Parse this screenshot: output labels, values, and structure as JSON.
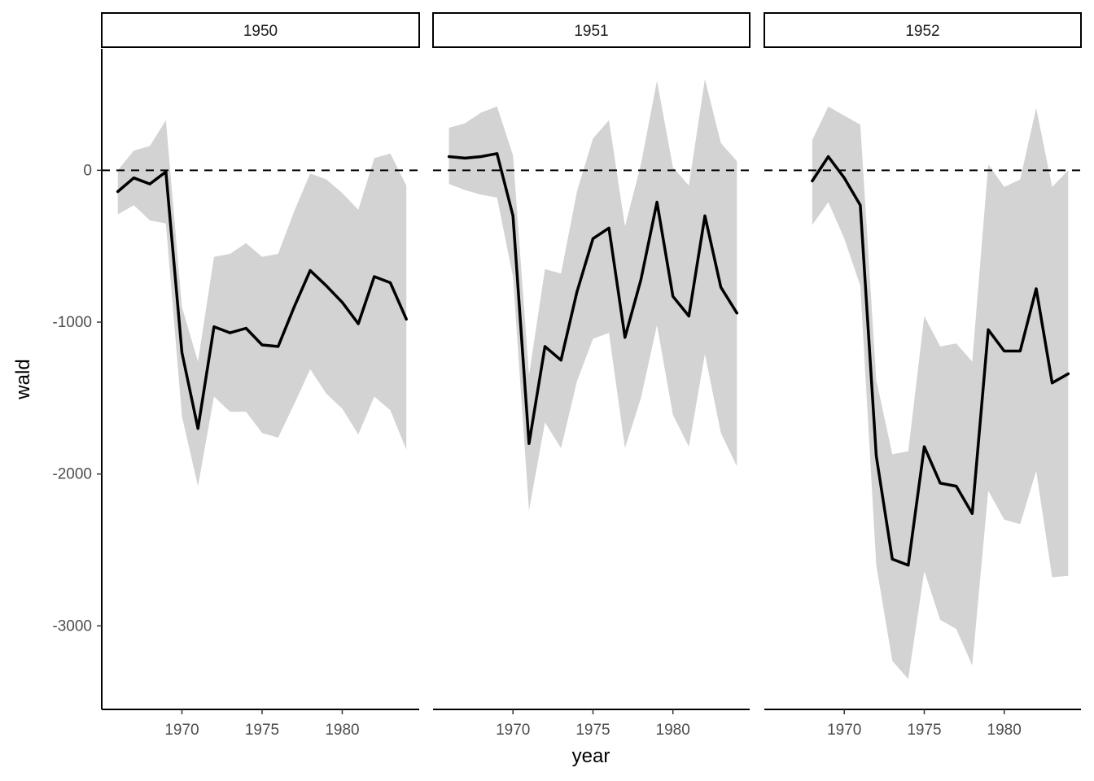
{
  "chart_data": {
    "type": "line",
    "ylabel": "wald",
    "xlabel": "year",
    "ylim": [
      -3550,
      800
    ],
    "yticks": [
      0,
      -1000,
      -2000,
      -3000
    ],
    "ytick_labels": [
      "0",
      "-1000",
      "-2000",
      "-3000"
    ],
    "xticks": [
      1970,
      1975,
      1980
    ],
    "xtick_labels": [
      "1970",
      "1975",
      "1980"
    ],
    "reference_line": {
      "y": 0,
      "style": "dashed",
      "color": "#000000"
    },
    "line_color": "#000000",
    "band_color": "#d3d3d3",
    "grid": false,
    "legend": "none",
    "facets": [
      {
        "label": "1950",
        "xlim": [
          1965.0,
          1984.8
        ],
        "x": [
          1966,
          1967,
          1968,
          1969,
          1970,
          1971,
          1972,
          1973,
          1974,
          1975,
          1976,
          1977,
          1978,
          1979,
          1980,
          1981,
          1982,
          1983,
          1984
        ],
        "y": [
          -140,
          -50,
          -90,
          -10,
          -1200,
          -1700,
          -1030,
          -1070,
          -1040,
          -1150,
          -1160,
          -900,
          -660,
          -760,
          -870,
          -1010,
          -700,
          -740,
          -980
        ],
        "upper": [
          0,
          130,
          160,
          330,
          -900,
          -1260,
          -570,
          -550,
          -480,
          -570,
          -550,
          -270,
          -20,
          -60,
          -150,
          -260,
          80,
          110,
          -100
        ],
        "lower": [
          -290,
          -230,
          -330,
          -350,
          -1620,
          -2080,
          -1490,
          -1590,
          -1590,
          -1730,
          -1760,
          -1540,
          -1310,
          -1470,
          -1570,
          -1740,
          -1490,
          -1580,
          -1840
        ]
      },
      {
        "label": "1951",
        "xlim": [
          1965.0,
          1984.8
        ],
        "x": [
          1966,
          1967,
          1968,
          1969,
          1970,
          1971,
          1972,
          1973,
          1974,
          1975,
          1976,
          1977,
          1978,
          1979,
          1980,
          1981,
          1982,
          1983,
          1984
        ],
        "y": [
          90,
          80,
          90,
          110,
          -300,
          -1800,
          -1160,
          -1250,
          -800,
          -450,
          -380,
          -1100,
          -720,
          -210,
          -830,
          -960,
          -300,
          -770,
          -940
        ],
        "upper": [
          280,
          310,
          380,
          420,
          100,
          -1350,
          -650,
          -680,
          -140,
          210,
          330,
          -370,
          40,
          590,
          20,
          -100,
          600,
          180,
          60
        ],
        "lower": [
          -90,
          -130,
          -160,
          -180,
          -700,
          -2240,
          -1660,
          -1830,
          -1390,
          -1110,
          -1070,
          -1830,
          -1500,
          -1020,
          -1610,
          -1820,
          -1210,
          -1730,
          -1950
        ]
      },
      {
        "label": "1952",
        "xlim": [
          1965.0,
          1984.8
        ],
        "x": [
          1968,
          1969,
          1970,
          1971,
          1972,
          1973,
          1974,
          1975,
          1976,
          1977,
          1978,
          1979,
          1980,
          1981,
          1982,
          1983,
          1984
        ],
        "y": [
          -70,
          90,
          -50,
          -230,
          -1880,
          -2560,
          -2600,
          -1820,
          -2060,
          -2080,
          -2260,
          -1050,
          -1190,
          -1190,
          -780,
          -1400,
          -1340
        ],
        "upper": [
          200,
          420,
          360,
          300,
          -1380,
          -1870,
          -1850,
          -960,
          -1160,
          -1140,
          -1260,
          40,
          -110,
          -60,
          410,
          -110,
          0
        ],
        "lower": [
          -360,
          -210,
          -450,
          -760,
          -2600,
          -3230,
          -3350,
          -2640,
          -2960,
          -3020,
          -3260,
          -2110,
          -2300,
          -2330,
          -1980,
          -2680,
          -2670
        ]
      }
    ]
  }
}
